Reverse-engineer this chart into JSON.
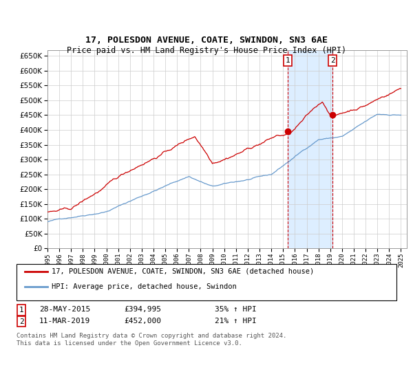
{
  "title": "17, POLESDON AVENUE, COATE, SWINDON, SN3 6AE",
  "subtitle": "Price paid vs. HM Land Registry's House Price Index (HPI)",
  "ylim": [
    0,
    670000
  ],
  "yticks": [
    0,
    50000,
    100000,
    150000,
    200000,
    250000,
    300000,
    350000,
    400000,
    450000,
    500000,
    550000,
    600000,
    650000
  ],
  "legend_line1": "17, POLESDON AVENUE, COATE, SWINDON, SN3 6AE (detached house)",
  "legend_line2": "HPI: Average price, detached house, Swindon",
  "sale1_date": "28-MAY-2015",
  "sale1_price": "£394,995",
  "sale1_label": "35% ↑ HPI",
  "sale1_year": 2015.411,
  "sale1_value": 394995,
  "sale2_date": "11-MAR-2019",
  "sale2_price": "£452,000",
  "sale2_label": "21% ↑ HPI",
  "sale2_year": 2019.192,
  "sale2_value": 452000,
  "footnote1": "Contains HM Land Registry data © Crown copyright and database right 2024.",
  "footnote2": "This data is licensed under the Open Government Licence v3.0.",
  "red_color": "#cc0000",
  "blue_color": "#6699cc",
  "shade_color": "#ddeeff",
  "grid_color": "#cccccc",
  "bg": "#ffffff"
}
